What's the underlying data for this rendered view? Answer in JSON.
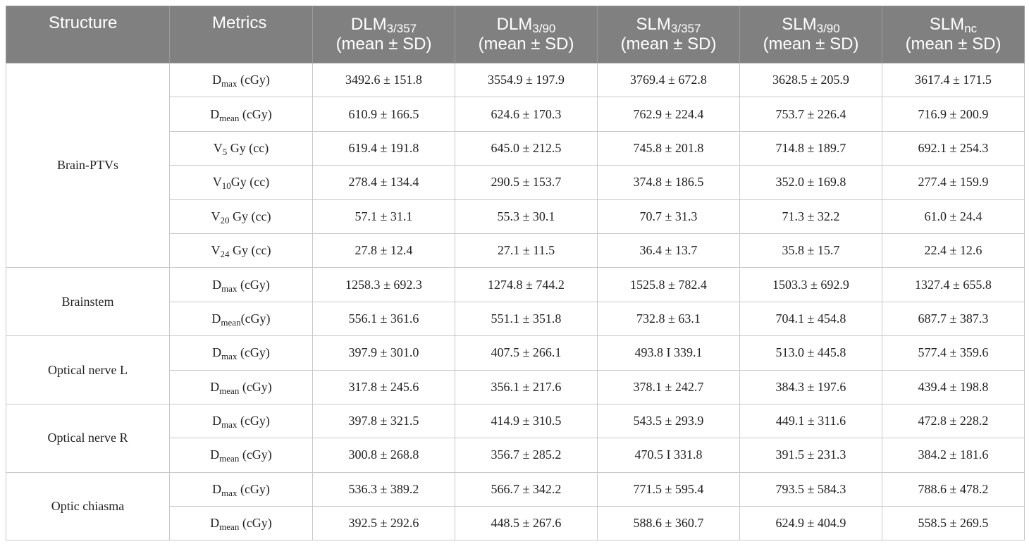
{
  "table": {
    "header": [
      {
        "text": "Structure"
      },
      {
        "text": "Metrics"
      },
      {
        "main": "DLM",
        "sub": "3/357",
        "line2": "(mean ± SD)"
      },
      {
        "main": "DLM",
        "sub": "3/90",
        "line2": "(mean ± SD)"
      },
      {
        "main": "SLM",
        "sub": "3/357",
        "line2": "(mean ± SD)"
      },
      {
        "main": "SLM",
        "sub": "3/90",
        "line2": "(mean ± SD)"
      },
      {
        "main": "SLM",
        "sub": "nc",
        "line2": "(mean ± SD)"
      }
    ],
    "groups": [
      {
        "structure": "Brain-PTVs",
        "rows": [
          {
            "metric": {
              "main": "D",
              "sub": "max",
              "rest": " (cGy)"
            },
            "values": [
              "3492.6 ± 151.8",
              "3554.9 ± 197.9",
              "3769.4 ± 672.8",
              "3628.5 ± 205.9",
              "3617.4 ± 171.5"
            ]
          },
          {
            "metric": {
              "main": "D",
              "sub": "mean",
              "rest": " (cGy)"
            },
            "values": [
              "610.9 ± 166.5",
              "624.6 ± 170.3",
              "762.9 ± 224.4",
              "753.7 ± 226.4",
              "716.9 ± 200.9"
            ]
          },
          {
            "metric": {
              "main": "V",
              "sub": "5",
              "rest": " Gy (cc)"
            },
            "values": [
              "619.4 ± 191.8",
              "645.0 ± 212.5",
              "745.8 ± 201.8",
              "714.8 ± 189.7",
              "692.1 ± 254.3"
            ]
          },
          {
            "metric": {
              "main": "V",
              "sub": "10",
              "rest": "Gy (cc)"
            },
            "values": [
              "278.4 ± 134.4",
              "290.5 ± 153.7",
              "374.8 ± 186.5",
              "352.0 ± 169.8",
              "277.4 ± 159.9"
            ]
          },
          {
            "metric": {
              "main": "V",
              "sub": "20",
              "rest": " Gy (cc)"
            },
            "values": [
              "57.1 ± 31.1",
              "55.3 ± 30.1",
              "70.7 ± 31.3",
              "71.3 ± 32.2",
              "61.0 ± 24.4"
            ]
          },
          {
            "metric": {
              "main": "V",
              "sub": "24",
              "rest": " Gy (cc)"
            },
            "values": [
              "27.8 ± 12.4",
              "27.1 ± 11.5",
              "36.4 ± 13.7",
              "35.8 ± 15.7",
              "22.4 ± 12.6"
            ]
          }
        ]
      },
      {
        "structure": "Brainstem",
        "rows": [
          {
            "metric": {
              "main": "D",
              "sub": "max",
              "rest": " (cGy)"
            },
            "values": [
              "1258.3 ± 692.3",
              "1274.8 ± 744.2",
              "1525.8 ± 782.4",
              "1503.3 ± 692.9",
              "1327.4 ± 655.8"
            ]
          },
          {
            "metric": {
              "main": "D",
              "sub": "mean",
              "rest": "(cGy)"
            },
            "values": [
              "556.1 ± 361.6",
              "551.1 ± 351.8",
              "732.8 ± 63.1",
              "704.1 ± 454.8",
              "687.7 ± 387.3"
            ]
          }
        ]
      },
      {
        "structure": "Optical nerve L",
        "rows": [
          {
            "metric": {
              "main": "D",
              "sub": "max",
              "rest": " (cGy)"
            },
            "values": [
              "397.9 ± 301.0",
              "407.5 ± 266.1",
              "493.8 I 339.1",
              "513.0 ± 445.8",
              "577.4 ± 359.6"
            ]
          },
          {
            "metric": {
              "main": "D",
              "sub": "mean",
              "rest": " (cGy)"
            },
            "values": [
              "317.8 ± 245.6",
              "356.1 ± 217.6",
              "378.1 ± 242.7",
              "384.3 ± 197.6",
              "439.4 ± 198.8"
            ]
          }
        ]
      },
      {
        "structure": "Optical nerve R",
        "rows": [
          {
            "metric": {
              "main": "D",
              "sub": "max",
              "rest": " (cGy)"
            },
            "values": [
              "397.8 ± 321.5",
              "414.9 ± 310.5",
              "543.5 ± 293.9",
              "449.1 ± 311.6",
              "472.8 ± 228.2"
            ]
          },
          {
            "metric": {
              "main": "D",
              "sub": "mean",
              "rest": " (cGy)"
            },
            "values": [
              "300.8 ± 268.8",
              "356.7 ± 285.2",
              "470.5 I 331.8",
              "391.5 ± 231.3",
              "384.2 ± 181.6"
            ]
          }
        ]
      },
      {
        "structure": "Optic chiasma",
        "rows": [
          {
            "metric": {
              "main": "D",
              "sub": "max",
              "rest": " (cGy)"
            },
            "values": [
              "536.3 ± 389.2",
              "566.7 ± 342.2",
              "771.5 ± 595.4",
              "793.5 ± 584.3",
              "788.6 ± 478.2"
            ]
          },
          {
            "metric": {
              "main": "D",
              "sub": "mean",
              "rest": " (cGy)"
            },
            "values": [
              "392.5 ± 292.6",
              "448.5 ± 267.6",
              "588.6 ± 360.7",
              "624.9 ± 404.9",
              "558.5 ± 269.5"
            ]
          }
        ]
      }
    ]
  }
}
